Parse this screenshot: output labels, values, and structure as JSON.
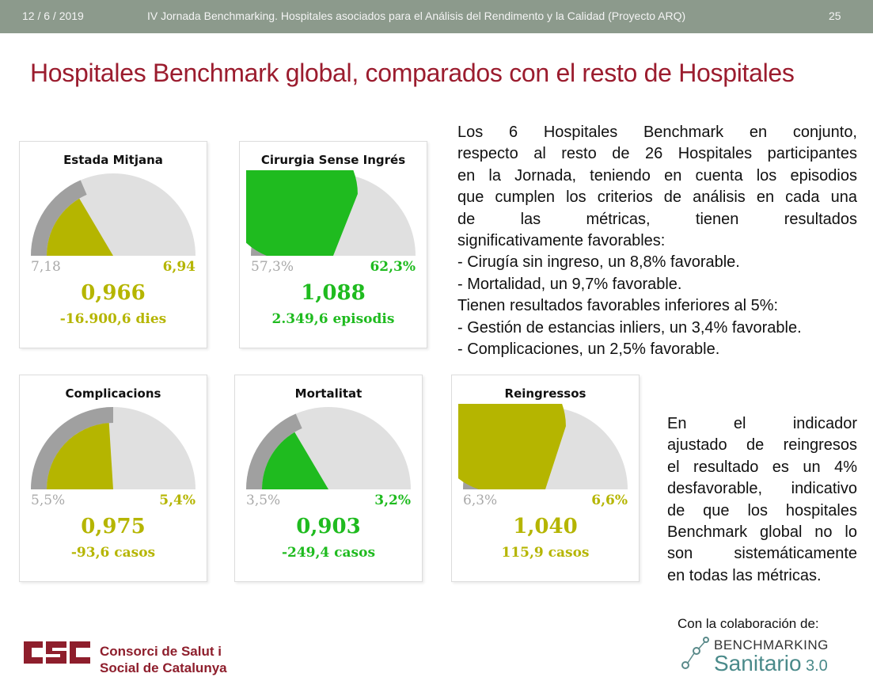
{
  "header": {
    "date": "12 / 6 / 2019",
    "event": "IV Jornada Benchmarking. Hospitales asociados para el Análisis del Rendimento y la Calidad (Proyecto ARQ)",
    "page_number": "25"
  },
  "title": "Hospitales Benchmark global, comparados con el resto de Hospitales",
  "colors": {
    "title": "#9b1c2e",
    "olive": "#b5b500",
    "green": "#1fbb1f",
    "gauge_track": "#e0e0e0",
    "gauge_reference": "#a0a0a0"
  },
  "gauges": [
    {
      "title": "Estada Mitjana",
      "reference_label": "7,18",
      "value_label": "6,94",
      "index": "0,966",
      "detail": "-16.900,6 dies",
      "color": "olive",
      "fill_fraction": 0.33,
      "reference_fraction": 0.37
    },
    {
      "title": "Cirurgia Sense Ingrés",
      "reference_label": "57,3%",
      "value_label": "62,3%",
      "index": "1,088",
      "detail": "2.349,6 episodis",
      "color": "green",
      "fill_fraction": 0.62,
      "reference_fraction": 0.57
    },
    {
      "title": "Complicacions",
      "reference_label": "5,5%",
      "value_label": "5,4%",
      "index": "0,975",
      "detail": "-93,6 casos",
      "color": "olive",
      "fill_fraction": 0.48,
      "reference_fraction": 0.5
    },
    {
      "title": "Mortalitat",
      "reference_label": "3,5%",
      "value_label": "3,2%",
      "index": "0,903",
      "detail": "-249,4 casos",
      "color": "green",
      "fill_fraction": 0.33,
      "reference_fraction": 0.37
    },
    {
      "title": "Reingressos",
      "reference_label": "6,3%",
      "value_label": "6,6%",
      "index": "1,040",
      "detail": "115,9 casos",
      "color": "olive",
      "fill_fraction": 0.6,
      "reference_fraction": 0.57
    }
  ],
  "summary": {
    "lines": [
      "Los 6 Hospitales Benchmark en conjunto,",
      "respecto al resto de 26 Hospitales participantes",
      "en la Jornada, teniendo en cuenta los episodios",
      "que cumplen los criterios de análisis en cada una",
      "de las métricas, tienen resultados",
      "significativamente favorables:",
      "- Cirugía sin ingreso, un 8,8% favorable.",
      "- Mortalidad, un 9,7% favorable.",
      "Tienen resultados favorables inferiores al 5%:",
      "- Gestión de estancias inliers, un 3,4% favorable.",
      "- Complicaciones, un 2,5% favorable."
    ]
  },
  "note": {
    "lines": [
      "En el indicador",
      "ajustado de reingresos",
      "el resultado es un 4%",
      "desfavorable, indicativo",
      "de que los hospitales",
      "Benchmark global no lo",
      "son sistemáticamente",
      "en todas las métricas."
    ]
  },
  "footer": {
    "consorci_line1": "Consorci de Salut i",
    "consorci_line2": "Social de Catalunya",
    "collaboration": "Con la colaboración de:",
    "bench_top": "BENCHMARKING",
    "bench_bottom": "Sanitario",
    "bench_version": "3.0"
  }
}
